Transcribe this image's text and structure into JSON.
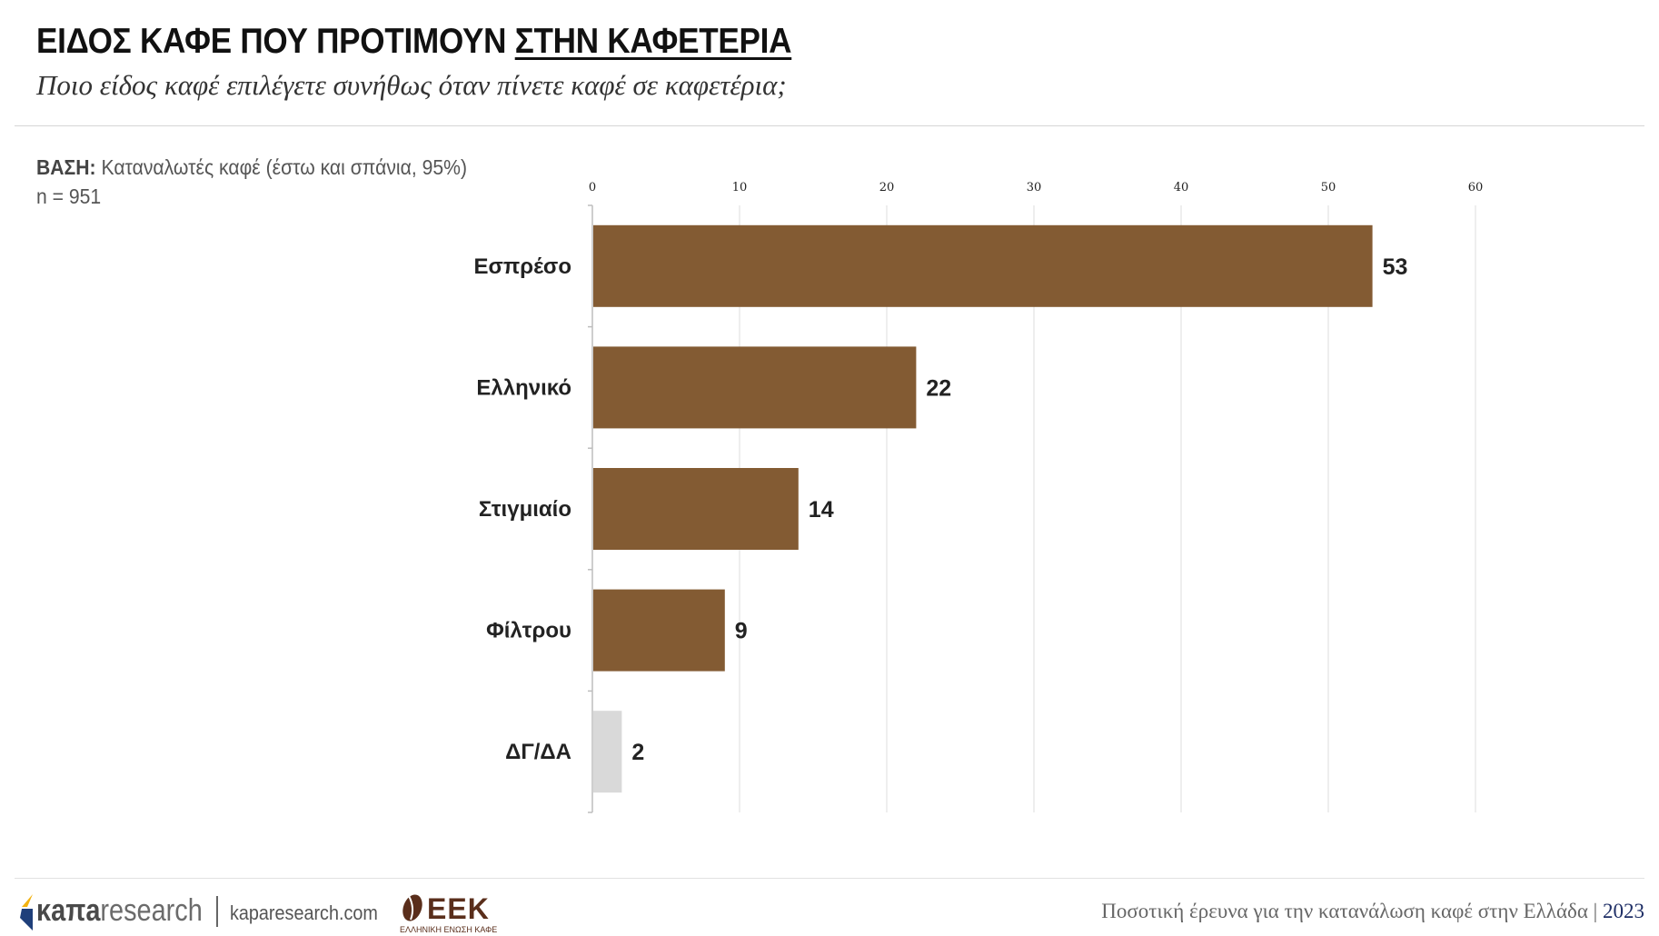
{
  "header": {
    "title_part1": "ΕΙΔΟΣ ΚΑΦΕ ΠΟΥ ΠΡΟΤΙΜΟΥΝ ",
    "title_part2": "ΣΤΗΝ ΚΑΦΕΤΕΡΙΑ",
    "subtitle": "Ποιο είδος καφέ επιλέγετε συνήθως όταν πίνετε καφέ σε καφετέρια;"
  },
  "base": {
    "label": "ΒΑΣΗ:",
    "text": " Καταναλωτές καφέ (έστω και σπάνια, 95%)",
    "n": "n = 951"
  },
  "chart_data": {
    "type": "bar",
    "orientation": "horizontal",
    "categories": [
      "Εσπρέσο",
      "Ελληνικό",
      "Στιγμιαίο",
      "Φίλτρου",
      "ΔΓ/ΔΑ"
    ],
    "values": [
      53,
      22,
      14,
      9,
      2
    ],
    "value_labels": [
      "53",
      "22",
      "14",
      "9",
      "2"
    ],
    "xlim": [
      0,
      60
    ],
    "xticks": [
      "0",
      "10",
      "20",
      "30",
      "40",
      "50",
      "60"
    ],
    "tick_values": [
      0,
      10,
      20,
      30,
      40,
      50,
      60
    ],
    "x_axis_position": "top",
    "grid": true,
    "colors": [
      "#835b33",
      "#835b33",
      "#835b33",
      "#835b33",
      "#d9d9d9"
    ],
    "title": "",
    "xlabel": "",
    "ylabel": ""
  },
  "footer": {
    "kapa_bold": "κaπa",
    "kapa_rest": "research",
    "site": "kaparesearch.com",
    "eek": "ΕΕΚ",
    "eek_sub": "ΕΛΛΗΝΙΚΗ ΕΝΩΣΗ ΚΑΦΕ",
    "note": "Ποσοτική έρευνα για την κατανάλωση καφέ στην Ελλάδα | ",
    "year": "2023"
  },
  "colors": {
    "bar": "#835b33",
    "bar_other": "#d9d9d9",
    "logo_gold": "#f2b211",
    "logo_blue": "#1f3f7a",
    "eek_brown": "#5a2e1b"
  }
}
